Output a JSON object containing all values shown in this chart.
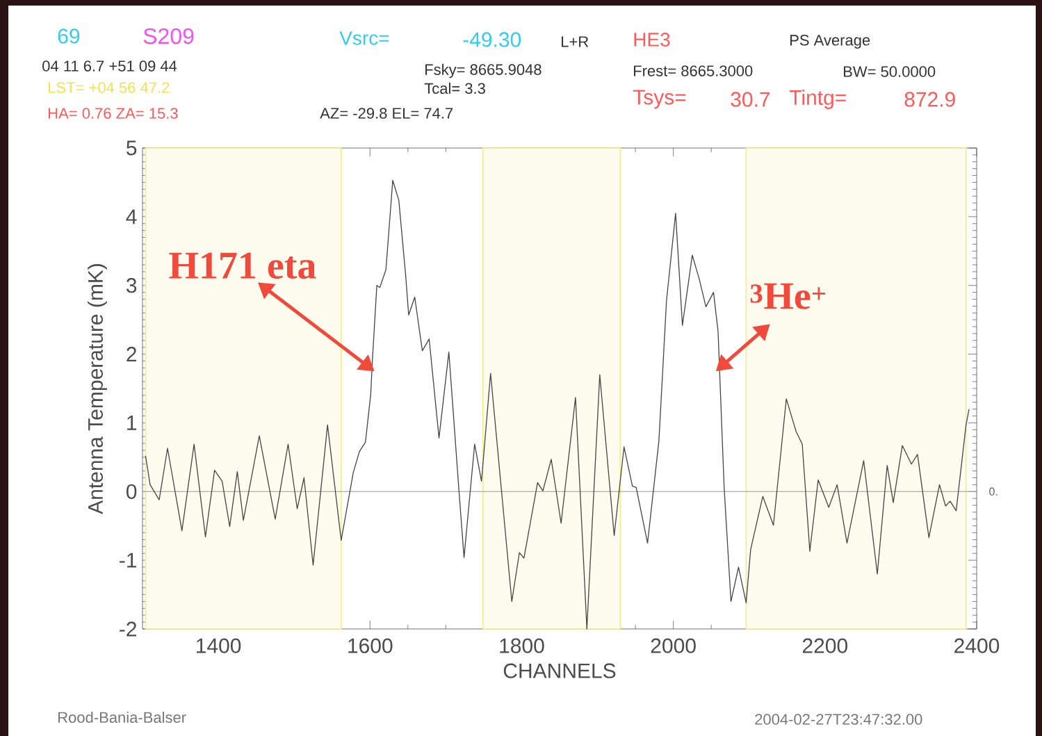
{
  "chart_data": {
    "type": "line",
    "xlabel": "CHANNELS",
    "ylabel": "Antenna Temperature (mK)",
    "x": [
      1304,
      1310,
      1322,
      1333,
      1352,
      1368,
      1383,
      1395,
      1405,
      1415,
      1425,
      1433,
      1454,
      1475,
      1492,
      1504,
      1513,
      1525,
      1544,
      1562,
      1578,
      1586,
      1594,
      1601,
      1603,
      1609,
      1613,
      1621,
      1630,
      1638,
      1647,
      1651,
      1659,
      1669,
      1678,
      1691,
      1704,
      1717,
      1724,
      1738,
      1747,
      1759,
      1787,
      1797,
      1803,
      1821,
      1828,
      1839,
      1852,
      1871,
      1886,
      1903,
      1922,
      1935,
      1946,
      1951,
      1966,
      1981,
      1991,
      2003,
      2012,
      2025,
      2034,
      2043,
      2053,
      2059,
      2067,
      2076,
      2086,
      2096,
      2102,
      2118,
      2132,
      2149,
      2162,
      2170,
      2180,
      2191,
      2205,
      2216,
      2229,
      2251,
      2269,
      2282,
      2290,
      2302,
      2314,
      2322,
      2337,
      2351,
      2359,
      2365,
      2373,
      2386,
      2390
    ],
    "series": [
      {
        "color": "#444444",
        "values": [
          0.52,
          0.1,
          -0.12,
          0.63,
          -0.57,
          0.69,
          -0.66,
          0.31,
          0.15,
          -0.51,
          0.29,
          -0.42,
          0.81,
          -0.4,
          0.69,
          -0.25,
          0.2,
          -1.07,
          0.97,
          -0.71,
          0.28,
          0.58,
          0.72,
          1.42,
          1.88,
          3.0,
          2.97,
          3.23,
          4.53,
          4.24,
          3.15,
          2.57,
          2.83,
          2.05,
          2.22,
          0.78,
          2.03,
          0.06,
          -0.96,
          0.69,
          0.15,
          1.72,
          -1.6,
          -0.89,
          -0.97,
          0.13,
          0.01,
          0.47,
          -0.46,
          1.37,
          -2.0,
          1.7,
          -0.64,
          0.65,
          0.08,
          0.06,
          -0.75,
          0.74,
          2.78,
          4.05,
          2.42,
          3.44,
          3.1,
          2.69,
          2.9,
          2.33,
          0.06,
          -1.6,
          -1.1,
          -1.62,
          -0.84,
          -0.07,
          -0.49,
          1.35,
          0.87,
          0.69,
          -0.87,
          0.17,
          -0.23,
          0.1,
          -0.75,
          0.45,
          -1.2,
          0.38,
          -0.16,
          0.67,
          0.4,
          0.54,
          -0.67,
          0.1,
          -0.21,
          -0.14,
          -0.28,
          0.97,
          1.2
        ]
      }
    ],
    "bands": [
      {
        "axis": "x",
        "from": 1304,
        "to": 1562,
        "color": "#f2ec8a"
      },
      {
        "axis": "x",
        "from": 1749,
        "to": 1930,
        "color": "#f2ec8a"
      },
      {
        "axis": "x",
        "from": 2096,
        "to": 2386,
        "color": "#f2ec8a"
      }
    ],
    "xlim": [
      1300,
      2400
    ],
    "xticks": [
      1400,
      1600,
      1800,
      2000,
      2200,
      2400
    ],
    "ylim": [
      -2,
      5
    ],
    "yticks": [
      -2,
      -1,
      0,
      1,
      2,
      3,
      4,
      5
    ],
    "ref_lines": [
      {
        "axis": "y",
        "value": 0,
        "label": "0.",
        "color": "#999999"
      }
    ],
    "annotations": [
      "69",
      "S209",
      "Vsrc=",
      "-49.30",
      "L+R",
      "HE3",
      "PS Average",
      "04 11 6.7 +51 09 44",
      "Fsky= 8665.9048",
      "Tcal= 3.3",
      "Frest= 8665.3000",
      "BW= 50.0000",
      "LST= +04 56 47.2",
      "Tsys=",
      "30.7",
      "Tintg=",
      "872.9",
      "HA= 0.76 ZA= 15.3",
      "AZ= -29.8 EL= 74.7",
      "Rood-Bania-Balser",
      "2004-02-27T23:47:32.00",
      {
        "text": "H171 eta",
        "x": 1606,
        "y": 1.75
      },
      {
        "text": "$^{3}$He$^{+}$",
        "x": 2056,
        "y": 1.75
      }
    ]
  }
}
